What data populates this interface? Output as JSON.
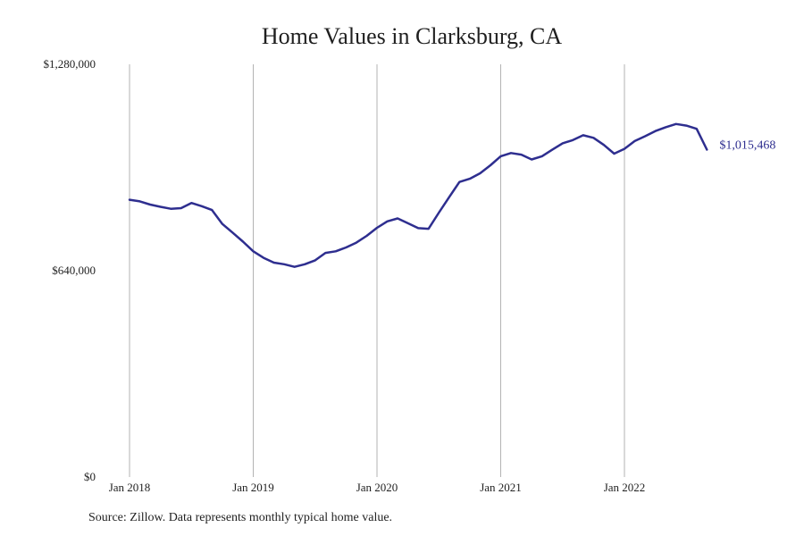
{
  "title": "Home Values in Clarksburg, CA",
  "source": "Source: Zillow. Data represents monthly typical home value.",
  "colors": {
    "line": "#2e2e8f",
    "grid": "#b3b3b3"
  },
  "chart_data": {
    "type": "line",
    "title": "Home Values in Clarksburg, CA",
    "xlabel": "",
    "ylabel": "",
    "ylim": [
      0,
      1280000
    ],
    "yticks": [
      0,
      640000,
      1280000
    ],
    "ytick_labels": [
      "$0",
      "$640,000",
      "$1,280,000"
    ],
    "xticks": [
      "2018-01",
      "2019-01",
      "2020-01",
      "2021-01",
      "2022-01"
    ],
    "xtick_labels": [
      "Jan 2018",
      "Jan 2019",
      "Jan 2020",
      "Jan 2021",
      "Jan 2022"
    ],
    "grid": "vertical",
    "end_label": "$1,015,468",
    "series": [
      {
        "x": [
          "2018-01",
          "2018-02",
          "2018-03",
          "2018-04",
          "2018-05",
          "2018-06",
          "2018-07",
          "2018-08",
          "2018-09",
          "2018-10",
          "2018-11",
          "2018-12",
          "2019-01",
          "2019-02",
          "2019-03",
          "2019-04",
          "2019-05",
          "2019-06",
          "2019-07",
          "2019-08",
          "2019-09",
          "2019-10",
          "2019-11",
          "2019-12",
          "2020-01",
          "2020-02",
          "2020-03",
          "2020-04",
          "2020-05",
          "2020-06",
          "2020-07",
          "2020-08",
          "2020-09",
          "2020-10",
          "2020-11",
          "2020-12",
          "2021-01",
          "2021-02",
          "2021-03",
          "2021-04",
          "2021-05",
          "2021-06",
          "2021-07",
          "2021-08",
          "2021-09",
          "2021-10",
          "2021-11",
          "2021-12",
          "2022-01",
          "2022-02",
          "2022-03",
          "2022-04",
          "2022-05",
          "2022-06",
          "2022-07",
          "2022-08",
          "2022-09"
        ],
        "values": [
          860000,
          855000,
          845000,
          838000,
          832000,
          834000,
          850000,
          840000,
          828000,
          785000,
          758000,
          730000,
          700000,
          680000,
          665000,
          660000,
          652000,
          660000,
          672000,
          695000,
          700000,
          712000,
          727000,
          748000,
          773000,
          793000,
          802000,
          787000,
          772000,
          770000,
          820000,
          868000,
          915000,
          925000,
          942000,
          967000,
          995000,
          1005000,
          1000000,
          985000,
          995000,
          1015000,
          1035000,
          1045000,
          1060000,
          1052000,
          1030000,
          1003000,
          1018000,
          1042000,
          1057000,
          1073000,
          1085000,
          1095000,
          1090000,
          1080000,
          1015468
        ]
      }
    ]
  }
}
